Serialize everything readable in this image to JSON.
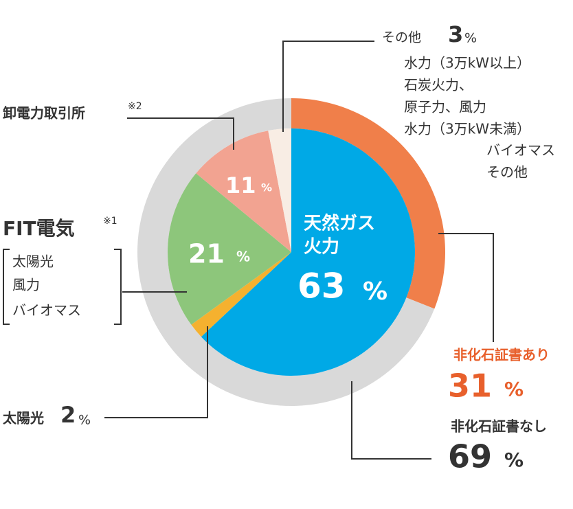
{
  "chart_data": {
    "type": "pie",
    "unit": "%",
    "inner": {
      "slices": [
        {
          "label": [
            "天然ガス",
            "火力"
          ],
          "value": 63,
          "color": "#00a9e6"
        },
        {
          "label": "太陽光",
          "value": 2,
          "color": "#f5b12f"
        },
        {
          "label": "FIT電気",
          "note": "※1",
          "value": 21,
          "color": "#8dc67b",
          "items": [
            "太陽光",
            "風力",
            "バイオマス"
          ]
        },
        {
          "label": "卸電力取引所",
          "note": "※2",
          "value": 11,
          "color": "#f2a391"
        },
        {
          "label": "その他",
          "value": 3,
          "color": "#f8ede4",
          "items": [
            "水力（3万kW以上）",
            "石炭火力、",
            "原子力、風力",
            "水力（3万kW未満）",
            "バイオマス",
            "その他"
          ]
        }
      ]
    },
    "outer": {
      "slices": [
        {
          "label": "非化石証書あり",
          "value": 31,
          "color": "#f07f4a"
        },
        {
          "label": "非化石証書なし",
          "value": 69,
          "color": "#d9d9d9"
        }
      ]
    }
  }
}
